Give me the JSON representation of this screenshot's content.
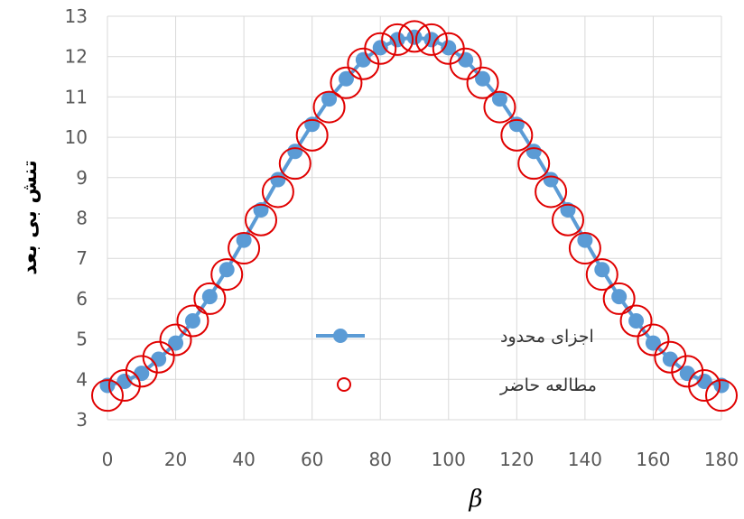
{
  "chart_data": {
    "type": "line",
    "title": "",
    "xlabel": "β",
    "ylabel": "تنش بی بعد",
    "xlim": [
      0,
      180
    ],
    "ylim": [
      3,
      13
    ],
    "xticks": [
      0,
      20,
      40,
      60,
      80,
      100,
      120,
      140,
      160,
      180
    ],
    "yticks": [
      3,
      4,
      5,
      6,
      7,
      8,
      9,
      10,
      11,
      12,
      13
    ],
    "grid": true,
    "legend_position": "center-right",
    "x": [
      0,
      5,
      10,
      15,
      20,
      25,
      30,
      35,
      40,
      45,
      50,
      55,
      60,
      65,
      70,
      75,
      80,
      85,
      90,
      95,
      100,
      105,
      110,
      115,
      120,
      125,
      130,
      135,
      140,
      145,
      150,
      155,
      160,
      165,
      170,
      175,
      180
    ],
    "series": [
      {
        "name": "اجزای محدود",
        "style": "line-marker",
        "color": "#5b9bd5",
        "values": [
          3.85,
          3.95,
          4.15,
          4.5,
          4.9,
          5.45,
          6.05,
          6.72,
          7.45,
          8.2,
          8.95,
          9.65,
          10.32,
          10.95,
          11.45,
          11.92,
          12.22,
          12.42,
          12.48,
          12.42,
          12.22,
          11.92,
          11.45,
          10.95,
          10.32,
          9.65,
          8.95,
          8.2,
          7.45,
          6.72,
          6.05,
          5.45,
          4.9,
          4.5,
          4.15,
          3.95,
          3.85
        ]
      },
      {
        "name": "مطالعه حاضر",
        "style": "open-circle",
        "color": "#e00000",
        "values": [
          3.6,
          3.85,
          4.2,
          4.55,
          4.98,
          5.45,
          6.0,
          6.6,
          7.25,
          7.95,
          8.65,
          9.35,
          10.05,
          10.75,
          11.35,
          11.82,
          12.2,
          12.42,
          12.5,
          12.42,
          12.2,
          11.82,
          11.35,
          10.75,
          10.05,
          9.35,
          8.65,
          7.95,
          7.25,
          6.6,
          6.0,
          5.45,
          4.98,
          4.55,
          4.2,
          3.85,
          3.6
        ]
      }
    ]
  }
}
